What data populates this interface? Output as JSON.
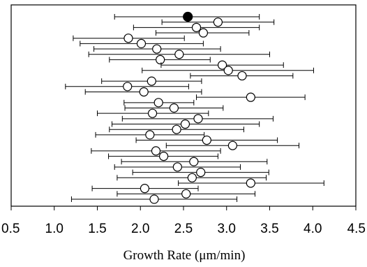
{
  "chart_data": {
    "type": "scatter",
    "style": "horizontal error bars (mean ± spread)",
    "xlabel": "Growth Rate (μm/min)",
    "ylabel": "",
    "title": "",
    "xlim": [
      0.5,
      4.5
    ],
    "x_ticks": [
      "0.5",
      "1.0",
      "1.5",
      "2.0",
      "2.5",
      "3.0",
      "3.5",
      "4.0",
      "4.5"
    ],
    "grid": false,
    "legend": "none",
    "summary_point": {
      "x": 2.55,
      "low": 1.7,
      "high": 3.38,
      "marker": "filled-circle"
    },
    "points": [
      {
        "x": 2.9,
        "low": 2.25,
        "high": 3.55
      },
      {
        "x": 2.65,
        "low": 1.92,
        "high": 3.38
      },
      {
        "x": 2.73,
        "low": 2.18,
        "high": 3.26
      },
      {
        "x": 1.86,
        "low": 1.22,
        "high": 2.51
      },
      {
        "x": 2.01,
        "low": 1.3,
        "high": 2.73
      },
      {
        "x": 2.19,
        "low": 1.46,
        "high": 2.93
      },
      {
        "x": 2.45,
        "low": 1.4,
        "high": 3.5
      },
      {
        "x": 2.23,
        "low": 1.64,
        "high": 2.81
      },
      {
        "x": 2.95,
        "low": 2.24,
        "high": 3.66
      },
      {
        "x": 3.02,
        "low": 2.02,
        "high": 4.01
      },
      {
        "x": 3.18,
        "low": 2.58,
        "high": 3.77
      },
      {
        "x": 2.13,
        "low": 1.55,
        "high": 2.71
      },
      {
        "x": 1.85,
        "low": 1.13,
        "high": 2.56
      },
      {
        "x": 2.04,
        "low": 1.36,
        "high": 2.71
      },
      {
        "x": 3.28,
        "low": 2.65,
        "high": 3.91
      },
      {
        "x": 2.21,
        "low": 1.81,
        "high": 2.62
      },
      {
        "x": 2.39,
        "low": 1.82,
        "high": 2.96
      },
      {
        "x": 2.14,
        "low": 1.5,
        "high": 2.79
      },
      {
        "x": 2.67,
        "low": 1.79,
        "high": 3.54
      },
      {
        "x": 2.52,
        "low": 1.67,
        "high": 3.38
      },
      {
        "x": 2.42,
        "low": 1.64,
        "high": 3.2
      },
      {
        "x": 2.11,
        "low": 1.48,
        "high": 2.74
      },
      {
        "x": 2.77,
        "low": 1.95,
        "high": 3.59
      },
      {
        "x": 3.07,
        "low": 2.3,
        "high": 3.84
      },
      {
        "x": 2.18,
        "low": 1.43,
        "high": 2.93
      },
      {
        "x": 2.27,
        "low": 1.63,
        "high": 2.9
      },
      {
        "x": 2.62,
        "low": 1.78,
        "high": 3.47
      },
      {
        "x": 2.43,
        "low": 1.7,
        "high": 3.16
      },
      {
        "x": 2.7,
        "low": 1.91,
        "high": 3.49
      },
      {
        "x": 2.6,
        "low": 1.73,
        "high": 3.46
      },
      {
        "x": 3.28,
        "low": 2.44,
        "high": 4.13
      },
      {
        "x": 2.05,
        "low": 1.44,
        "high": 2.67
      },
      {
        "x": 2.53,
        "low": 1.73,
        "high": 3.33
      },
      {
        "x": 2.16,
        "low": 1.2,
        "high": 3.12
      }
    ]
  }
}
